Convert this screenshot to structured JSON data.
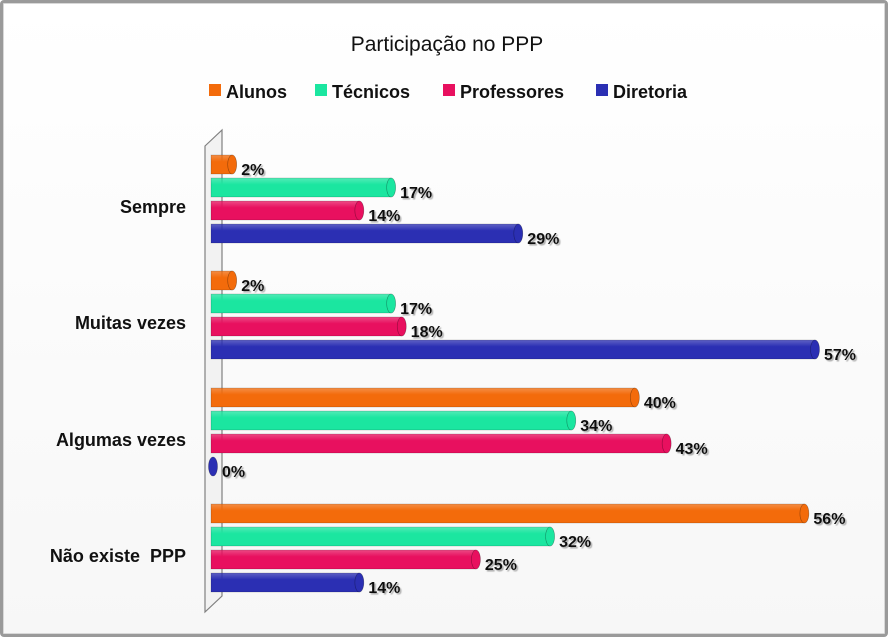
{
  "chart_data": {
    "type": "bar",
    "orientation": "horizontal",
    "title": "Participação no PPP",
    "categories": [
      "Sempre",
      "Muitas vezes",
      "Algumas vezes",
      "Não existe  PPP"
    ],
    "series": [
      {
        "name": "Alunos",
        "color": "#f36b0b",
        "values": [
          2,
          2,
          40,
          56
        ],
        "labels": [
          "2%",
          "2%",
          "40%",
          "56%"
        ]
      },
      {
        "name": "Técnicos",
        "color": "#1be6a0",
        "values": [
          17,
          17,
          34,
          32
        ],
        "labels": [
          "17%",
          "17%",
          "34%",
          "32%"
        ]
      },
      {
        "name": "Professores",
        "color": "#e8105f",
        "values": [
          14,
          18,
          43,
          25
        ],
        "labels": [
          "14%",
          "18%",
          "43%",
          "25%"
        ]
      },
      {
        "name": "Diretoria",
        "color": "#2b2fb3",
        "values": [
          29,
          57,
          0,
          14
        ],
        "labels": [
          "29%",
          "57%",
          "0%",
          "14%"
        ]
      }
    ],
    "xlim": [
      0,
      57
    ],
    "legend_position": "top",
    "grid": false
  }
}
